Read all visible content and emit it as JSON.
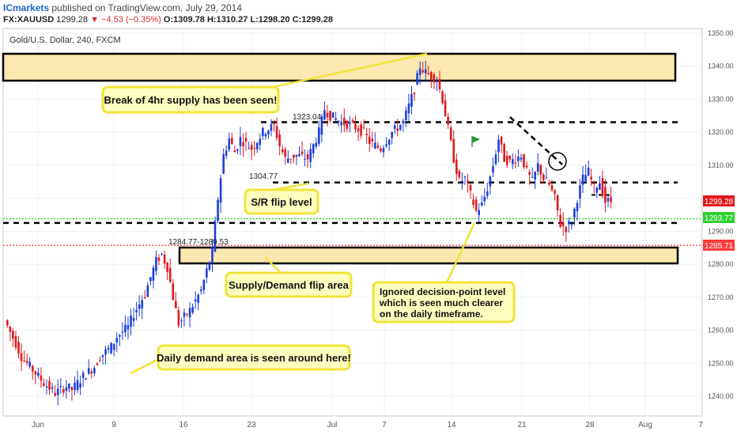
{
  "header": {
    "brand": "ICmarkets",
    "published": "published on TradingView.com, July 29, 2014",
    "symbol": "FX:XAUUSD",
    "last": "1299.28",
    "arrow": "▼",
    "change": "−4.53 (−0.35%)",
    "open": "O:1309.78",
    "high": "H:1310.27",
    "low": "L:1298.20",
    "close": "C:1299.28"
  },
  "chart_title": "Gold/U.S. Dollar, 240, FXCM",
  "colors": {
    "up": "#1c3fdc",
    "down": "#e0191e",
    "zone_fill": "#fde7b1",
    "callout_fill": "#ffffc0",
    "callout_stroke": "#f0e33a",
    "green_line": "#2fd12f",
    "red_line": "#ff3b3b"
  },
  "levels": {
    "l1323": "1323.04",
    "l1304": "1304.77",
    "zone_label": "1284.77-1280.53"
  },
  "annotations": {
    "break_supply": "Break of 4hr supply has been seen!",
    "sr_flip": "S/R flip level",
    "supply_demand_flip": "Supply/Demand flip area",
    "ignored_line1": "Ignored decision-point level",
    "ignored_line2": "which is seen much clearer",
    "ignored_line3": "on the daily timeframe.",
    "daily_demand": "Daily demand area is seen around here!"
  },
  "price_tags": {
    "current": "1299.28",
    "green": "1293.77",
    "red": "1285.71"
  },
  "chart_data": {
    "type": "candlestick",
    "title": "Gold/U.S. Dollar, 240, FXCM",
    "yaxis": {
      "ticks": [
        "1350.00",
        "1340.00",
        "1330.00",
        "1320.00",
        "1310.00",
        "1300.00",
        "1290.00",
        "1280.00",
        "1270.00",
        "1260.00",
        "1250.00",
        "1240.00"
      ],
      "ylim": [
        1235,
        1351
      ]
    },
    "xaxis": {
      "ticks": [
        "Jun",
        "9",
        "16",
        "23",
        "Jul",
        "7",
        "14",
        "21",
        "28",
        "Aug",
        "7"
      ]
    },
    "horizontal_levels": [
      {
        "value": 1323.04,
        "style": "dashed",
        "color": "#000000"
      },
      {
        "value": 1304.77,
        "style": "dashed",
        "color": "#000000"
      },
      {
        "value": 1301.0,
        "style": "dashed",
        "color": "#000000"
      },
      {
        "value": 1292.5,
        "style": "dashed",
        "color": "#000000"
      },
      {
        "value": 1293.77,
        "style": "dotted",
        "color": "#2fd12f"
      },
      {
        "value": 1285.71,
        "style": "dotted",
        "color": "#ff3b3b"
      }
    ],
    "zones": [
      {
        "from": 1336.0,
        "to": 1343.5,
        "label": "4hr supply"
      },
      {
        "from": 1280.53,
        "to": 1284.77,
        "label": "1284.77-1280.53"
      }
    ],
    "price_path": [
      [
        0,
        1263
      ],
      [
        2,
        1256
      ],
      [
        3,
        1252
      ],
      [
        5,
        1248
      ],
      [
        7,
        1244
      ],
      [
        9,
        1241
      ],
      [
        11,
        1243
      ],
      [
        12,
        1242
      ],
      [
        14,
        1246
      ],
      [
        16,
        1249
      ],
      [
        17,
        1252
      ],
      [
        19,
        1255
      ],
      [
        20,
        1258
      ],
      [
        22,
        1261
      ],
      [
        23,
        1265
      ],
      [
        25,
        1271
      ],
      [
        26,
        1276
      ],
      [
        27,
        1281
      ],
      [
        28,
        1283
      ],
      [
        29,
        1279
      ],
      [
        30,
        1270
      ],
      [
        31,
        1262
      ],
      [
        33,
        1266
      ],
      [
        35,
        1272
      ],
      [
        36,
        1278
      ],
      [
        37,
        1284
      ],
      [
        38,
        1300
      ],
      [
        39,
        1313
      ],
      [
        40,
        1318
      ],
      [
        41,
        1314
      ],
      [
        42,
        1318
      ],
      [
        44,
        1315
      ],
      [
        46,
        1320
      ],
      [
        48,
        1322
      ],
      [
        49,
        1316
      ],
      [
        50,
        1312
      ],
      [
        52,
        1313
      ],
      [
        54,
        1312
      ],
      [
        55,
        1316
      ],
      [
        56,
        1320
      ],
      [
        57,
        1327
      ],
      [
        58,
        1325
      ],
      [
        60,
        1323
      ],
      [
        62,
        1322
      ],
      [
        64,
        1320
      ],
      [
        65,
        1317
      ],
      [
        67,
        1315
      ],
      [
        69,
        1320
      ],
      [
        71,
        1323
      ],
      [
        72,
        1328
      ],
      [
        73,
        1333
      ],
      [
        74,
        1340
      ],
      [
        75,
        1338
      ],
      [
        76,
        1337
      ],
      [
        77,
        1336
      ],
      [
        78,
        1330
      ],
      [
        80,
        1312
      ],
      [
        81,
        1305
      ],
      [
        82,
        1306
      ],
      [
        83,
        1301
      ],
      [
        84,
        1296
      ],
      [
        85,
        1298
      ],
      [
        86,
        1303
      ],
      [
        87,
        1310
      ],
      [
        88,
        1318
      ],
      [
        89,
        1312
      ],
      [
        90,
        1311
      ],
      [
        92,
        1313
      ],
      [
        93,
        1308
      ],
      [
        94,
        1305
      ],
      [
        95,
        1310
      ],
      [
        96,
        1306
      ],
      [
        97,
        1304
      ],
      [
        98,
        1300
      ],
      [
        99,
        1292
      ],
      [
        100,
        1291
      ],
      [
        101,
        1293
      ],
      [
        102,
        1300
      ],
      [
        103,
        1306
      ],
      [
        104,
        1308
      ],
      [
        105,
        1303
      ],
      [
        106,
        1305
      ],
      [
        107,
        1299
      ],
      [
        108,
        1299
      ]
    ]
  }
}
